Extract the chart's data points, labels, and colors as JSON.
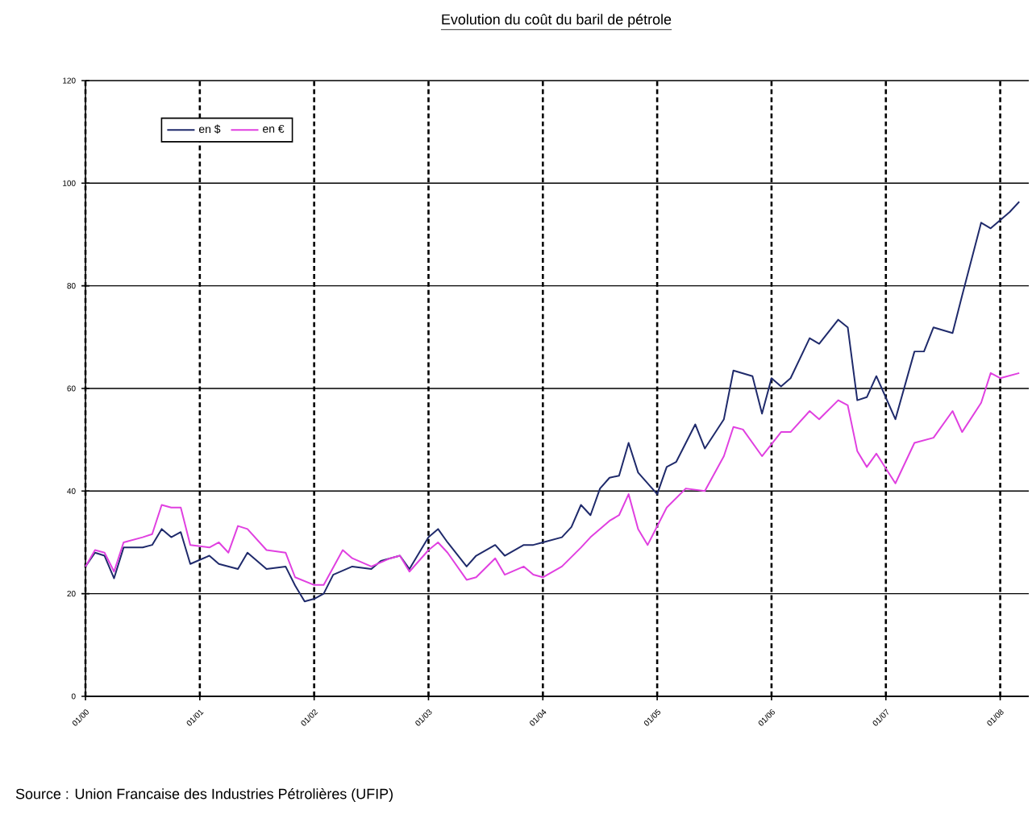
{
  "chart_data": {
    "type": "line",
    "title": "Evolution du coût du baril de pétrole",
    "annotations": [
      "Source : Union Francaise des Industries Pétrolières (UFIP)"
    ],
    "series": [
      {
        "name": "en $",
        "color": "#1f2a6b",
        "x": [
          "2000-01",
          "2000-02",
          "2000-03",
          "2000-04",
          "2000-05",
          "2000-07",
          "2000-08",
          "2000-09",
          "2000-10",
          "2000-11",
          "2000-12",
          "2001-02",
          "2001-03",
          "2001-05",
          "2001-06",
          "2001-08",
          "2001-10",
          "2001-11",
          "2001-12",
          "2002-01",
          "2002-02",
          "2002-03",
          "2002-05",
          "2002-07",
          "2002-08",
          "2002-10",
          "2002-11",
          "2003-01",
          "2003-02",
          "2003-03",
          "2003-05",
          "2003-06",
          "2003-08",
          "2003-09",
          "2003-11",
          "2003-12",
          "2004-01",
          "2004-03",
          "2004-04",
          "2004-05",
          "2004-06",
          "2004-07",
          "2004-08",
          "2004-09",
          "2004-10",
          "2004-11",
          "2005-01",
          "2005-02",
          "2005-03",
          "2005-05",
          "2005-06",
          "2005-08",
          "2005-09",
          "2005-11",
          "2005-12",
          "2006-01",
          "2006-02",
          "2006-03",
          "2006-05",
          "2006-06",
          "2006-08",
          "2006-09",
          "2006-10",
          "2006-11",
          "2006-12",
          "2007-02",
          "2007-04",
          "2007-05",
          "2007-06",
          "2007-08",
          "2007-09",
          "2007-11",
          "2007-12",
          "2008-02",
          "2008-03"
        ],
        "values": [
          25.3,
          28,
          27.4,
          23,
          29,
          29,
          29.5,
          32.6,
          31,
          32,
          25.8,
          27.4,
          25.8,
          24.8,
          28,
          24.8,
          25.3,
          21.6,
          18.5,
          19,
          20,
          23.7,
          25.3,
          24.8,
          26.4,
          27.4,
          24.8,
          31,
          32.6,
          30,
          25.3,
          27.4,
          29.5,
          27.4,
          29.5,
          29.5,
          30,
          31,
          33,
          37.3,
          35.3,
          40.5,
          42.6,
          43,
          49.4,
          43.6,
          39.4,
          44.7,
          45.7,
          53,
          48.3,
          54,
          63.5,
          62.4,
          55.1,
          62,
          60.4,
          62,
          69.8,
          68.7,
          73.4,
          71.9,
          57.7,
          58.3,
          62.4,
          54,
          67.2,
          67.2,
          71.9,
          70.8,
          78.1,
          92.3,
          91.2,
          94.4,
          96.4
        ]
      },
      {
        "name": "en €",
        "color": "#e040e0",
        "x": [
          "2000-01",
          "2000-02",
          "2000-03",
          "2000-04",
          "2000-05",
          "2000-07",
          "2000-08",
          "2000-09",
          "2000-10",
          "2000-11",
          "2000-12",
          "2001-02",
          "2001-03",
          "2001-04",
          "2001-05",
          "2001-06",
          "2001-08",
          "2001-10",
          "2001-11",
          "2002-01",
          "2002-02",
          "2002-04",
          "2002-05",
          "2002-07",
          "2002-09",
          "2002-10",
          "2002-11",
          "2003-01",
          "2003-02",
          "2003-03",
          "2003-05",
          "2003-06",
          "2003-08",
          "2003-09",
          "2003-11",
          "2003-12",
          "2004-01",
          "2004-03",
          "2004-05",
          "2004-06",
          "2004-08",
          "2004-09",
          "2004-10",
          "2004-11",
          "2004-12",
          "2005-02",
          "2005-04",
          "2005-06",
          "2005-08",
          "2005-09",
          "2005-10",
          "2005-12",
          "2006-02",
          "2006-03",
          "2006-05",
          "2006-06",
          "2006-08",
          "2006-09",
          "2006-10",
          "2006-11",
          "2006-12",
          "2007-02",
          "2007-04",
          "2007-06",
          "2007-08",
          "2007-09",
          "2007-11",
          "2007-12",
          "2008-01",
          "2008-03"
        ],
        "values": [
          25.3,
          28.5,
          28,
          24.3,
          30,
          31,
          31.6,
          37.3,
          36.8,
          36.8,
          29.5,
          29,
          30,
          28,
          33.2,
          32.6,
          28.5,
          28,
          23.2,
          21.7,
          21.7,
          28.5,
          26.9,
          25.3,
          26.9,
          27.4,
          24.3,
          28.5,
          30,
          28,
          22.7,
          23.2,
          26.9,
          23.7,
          25.3,
          23.7,
          23.2,
          25.3,
          29,
          31,
          34.2,
          35.3,
          39.4,
          32.6,
          29.5,
          36.8,
          40.5,
          40,
          46.8,
          52.5,
          52,
          46.8,
          51.5,
          51.5,
          55.6,
          54,
          57.7,
          56.7,
          47.8,
          44.7,
          47.3,
          41.5,
          49.4,
          50.4,
          55.6,
          51.5,
          57.2,
          63,
          62,
          63
        ]
      }
    ],
    "xlim": [
      "2000-01",
      "2008-04"
    ],
    "xticks": [
      {
        "value": "2000-01",
        "label": "01/00"
      },
      {
        "value": "2001-01",
        "label": "01/01"
      },
      {
        "value": "2002-01",
        "label": "01/02"
      },
      {
        "value": "2003-01",
        "label": "01/03"
      },
      {
        "value": "2004-01",
        "label": "01/04"
      },
      {
        "value": "2005-01",
        "label": "01/05"
      },
      {
        "value": "2006-01",
        "label": "01/06"
      },
      {
        "value": "2007-01",
        "label": "01/07"
      },
      {
        "value": "2008-01",
        "label": "01/08"
      }
    ],
    "ylim": [
      0,
      120
    ],
    "yticks": [
      0,
      20,
      40,
      60,
      80,
      100,
      120
    ],
    "grid": true,
    "legend": "top left",
    "line_style": "solid"
  }
}
